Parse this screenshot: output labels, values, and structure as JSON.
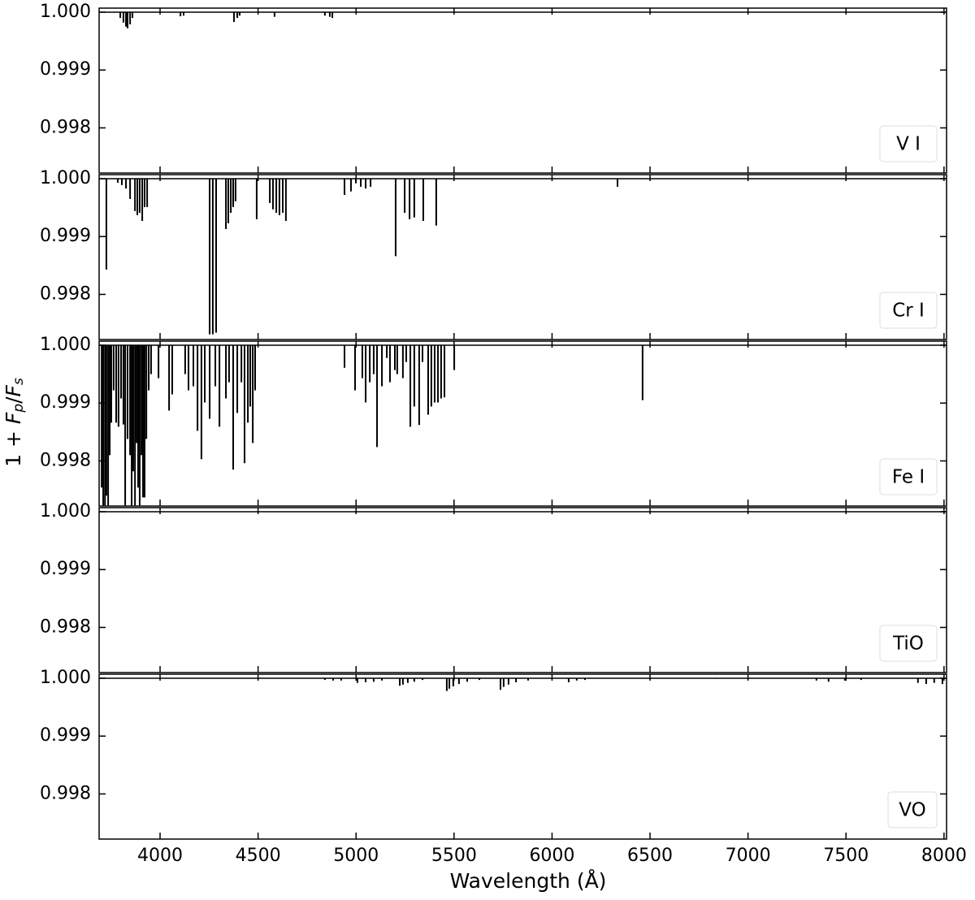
{
  "chart_data": [
    {
      "type": "stem",
      "label": "V I",
      "color": "#000000",
      "xlim": [
        3689,
        8013
      ],
      "ylim": [
        0.99722,
        1.00007
      ],
      "yticks": [
        0.998,
        0.999,
        {
          "value": 1,
          "label": "1.000"
        }
      ],
      "x": [
        3797,
        3813,
        3826,
        3834,
        3847,
        3859,
        4104,
        4120,
        4377,
        4394,
        4406,
        4584,
        4841,
        4866,
        4879
      ],
      "values": [
        0.9999,
        0.99982,
        0.99975,
        0.99972,
        0.99979,
        0.9999,
        0.99993,
        0.99994,
        0.99983,
        0.9999,
        0.99994,
        0.99992,
        0.99994,
        0.99992,
        0.9999
      ]
    },
    {
      "type": "stem",
      "label": "Cr I",
      "color": "#000000",
      "xlim": [
        3689,
        8013
      ],
      "ylim": [
        0.99722,
        1.00007
      ],
      "yticks": [
        0.998,
        0.999,
        {
          "value": 1,
          "label": "1.000"
        }
      ],
      "x": [
        3726,
        3784,
        3805,
        3826,
        3847,
        3872,
        3884,
        3896,
        3909,
        3921,
        3934,
        4253,
        4269,
        4286,
        4336,
        4348,
        4361,
        4373,
        4385,
        4493,
        4560,
        4576,
        4593,
        4609,
        4626,
        4642,
        4941,
        4974,
        4999,
        5024,
        5049,
        5074,
        5202,
        5248,
        5273,
        5297,
        5343,
        5409,
        6334
      ],
      "values": [
        0.99843,
        0.99993,
        0.99989,
        0.99983,
        0.99965,
        0.99944,
        0.99937,
        0.99941,
        0.99927,
        0.99951,
        0.99951,
        0.99731,
        0.99731,
        0.99734,
        0.99913,
        0.99923,
        0.99941,
        0.99951,
        0.99961,
        0.9993,
        0.99958,
        0.99947,
        0.99941,
        0.99937,
        0.99941,
        0.99927,
        0.99972,
        0.99978,
        0.99992,
        0.99986,
        0.99983,
        0.99986,
        0.99866,
        0.99941,
        0.9993,
        0.99933,
        0.99927,
        0.99919,
        0.99986
      ]
    },
    {
      "type": "stem",
      "label": "Fe I",
      "color": "#000000",
      "ylabel": [
        "1 + ",
        "F",
        "p",
        "/",
        "F",
        "s"
      ],
      "xlim": [
        3689,
        8013
      ],
      "ylim": [
        0.99722,
        1.00007
      ],
      "yticks": [
        0.998,
        0.999,
        {
          "value": 1,
          "label": "1.000"
        }
      ],
      "x": [
        3702,
        3710,
        3719,
        3726,
        3735,
        3743,
        3751,
        3763,
        3776,
        3788,
        3801,
        3813,
        3822,
        3834,
        3847,
        3855,
        3863,
        3872,
        3880,
        3888,
        3896,
        3905,
        3913,
        3921,
        3930,
        3942,
        3954,
        3992,
        4046,
        4062,
        4128,
        4145,
        4170,
        4191,
        4211,
        4228,
        4253,
        4282,
        4303,
        4336,
        4352,
        4373,
        4394,
        4415,
        4431,
        4448,
        4460,
        4473,
        4485,
        4941,
        4995,
        5032,
        5049,
        5070,
        5090,
        5107,
        5132,
        5157,
        5173,
        5198,
        5210,
        5239,
        5256,
        5277,
        5297,
        5322,
        5339,
        5368,
        5384,
        5401,
        5418,
        5434,
        5451,
        5501,
        6462
      ],
      "values": [
        0.99754,
        0.99723,
        0.99723,
        0.9974,
        0.99723,
        0.9981,
        0.99866,
        0.99922,
        0.99866,
        0.99859,
        0.99908,
        0.99863,
        0.99723,
        0.99838,
        0.9981,
        0.99723,
        0.99782,
        0.99723,
        0.99831,
        0.99754,
        0.99723,
        0.9981,
        0.99737,
        0.99737,
        0.99838,
        0.99922,
        0.9995,
        0.99943,
        0.99887,
        0.99915,
        0.9995,
        0.99922,
        0.99929,
        0.99852,
        0.99803,
        0.99901,
        0.99873,
        0.99929,
        0.99859,
        0.99908,
        0.99936,
        0.99785,
        0.99883,
        0.99936,
        0.99796,
        0.99866,
        0.99894,
        0.99831,
        0.99922,
        0.99961,
        0.99922,
        0.99943,
        0.99901,
        0.99936,
        0.9995,
        0.99824,
        0.99929,
        0.99978,
        0.99936,
        0.99957,
        0.9995,
        0.99943,
        0.99971,
        0.99859,
        0.99894,
        0.99862,
        0.99971,
        0.9988,
        0.99894,
        0.99901,
        0.99901,
        0.99908,
        0.9991,
        0.99957,
        0.99905
      ]
    },
    {
      "type": "stem",
      "label": "TiO",
      "color": "#000000",
      "xlim": [
        3689,
        8013
      ],
      "ylim": [
        0.99722,
        1.00007
      ],
      "yticks": [
        0.998,
        0.999,
        {
          "value": 1,
          "label": "1.000"
        }
      ],
      "x": [],
      "values": []
    },
    {
      "type": "stem",
      "label": "VO",
      "color": "#000000",
      "xlabel": "Wavelength (Å)",
      "xlim": [
        3689,
        8013
      ],
      "ylim": [
        0.99722,
        1.00007
      ],
      "xticks": [
        4000,
        4500,
        5000,
        5500,
        6000,
        6500,
        7000,
        7500,
        8000
      ],
      "yticks": [
        0.998,
        0.999,
        {
          "value": 1,
          "label": "1.000"
        }
      ],
      "x": [
        4841,
        4883,
        4924,
        5007,
        5049,
        5090,
        5132,
        5223,
        5239,
        5264,
        5297,
        5339,
        5463,
        5476,
        5496,
        5525,
        5567,
        5629,
        5737,
        5753,
        5778,
        5816,
        5878,
        6085,
        6126,
        6168,
        6500,
        6831,
        7349,
        7411,
        7494,
        7577,
        7867,
        7909,
        7950,
        7992
      ],
      "values": [
        0.99997,
        0.99996,
        0.99996,
        0.99992,
        0.99993,
        0.99994,
        0.99996,
        0.99987,
        0.99989,
        0.99992,
        0.99994,
        0.99997,
        0.99978,
        0.99982,
        0.99986,
        0.9999,
        0.99994,
        0.99997,
        0.9998,
        0.99985,
        0.99989,
        0.99993,
        0.99996,
        0.99993,
        0.99996,
        0.99997,
        0.99999,
        0.99999,
        0.99996,
        0.99994,
        0.99996,
        0.99997,
        0.99992,
        0.9999,
        0.99992,
        0.9999
      ]
    }
  ]
}
